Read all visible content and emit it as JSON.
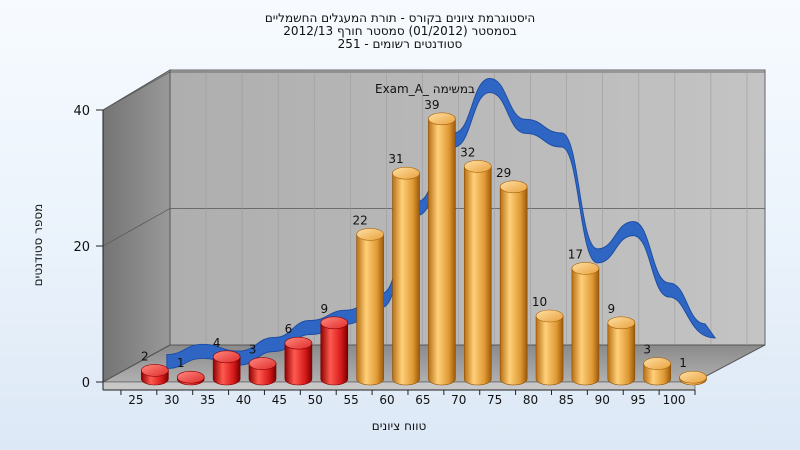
{
  "chart_data": {
    "type": "bar",
    "title_lines": [
      "היסטוגרמת ציונים בקורס - תורת המעגלים החשמליים",
      "בסמסטר  (01/2012)  סמסטר חורף 2012/13",
      "סטודנטים רשומים - 251"
    ],
    "xlabel": "טווח ציונים",
    "ylabel": "מספר סטודנטים",
    "categories": [
      "25",
      "30",
      "35",
      "40",
      "45",
      "50",
      "55",
      "60",
      "65",
      "70",
      "75",
      "80",
      "85",
      "90",
      "95",
      "100"
    ],
    "series": [
      {
        "values": [
          2,
          1,
          4,
          3,
          6,
          9,
          22,
          31,
          39,
          32,
          29,
          10,
          17,
          9,
          3,
          1
        ],
        "data_labels": [
          "2",
          "1",
          "4",
          "3",
          "6",
          "9",
          "22",
          "31",
          "39",
          "32",
          "29",
          "10",
          "17",
          "9",
          "3",
          "1"
        ],
        "colors": [
          "#e02a2a",
          "#e02a2a",
          "#e02a2a",
          "#e02a2a",
          "#e02a2a",
          "#e02a2a",
          "#e6a13e",
          "#e6a13e",
          "#e6a13e",
          "#e6a13e",
          "#e6a13e",
          "#e6a13e",
          "#e6a13e",
          "#e6a13e",
          "#e6a13e",
          "#e6a13e"
        ]
      },
      {
        "name": "Exam_A_ במשימה",
        "type": "area",
        "values": [
          0.5,
          2,
          1,
          3,
          5.5,
          7,
          9.5,
          23,
          33,
          41,
          35,
          33,
          16,
          20,
          11,
          5
        ],
        "color": "#2f66c4"
      }
    ],
    "yticks": [
      "0",
      "20",
      "40"
    ],
    "ylim": [
      0,
      40
    ],
    "grid": true
  }
}
